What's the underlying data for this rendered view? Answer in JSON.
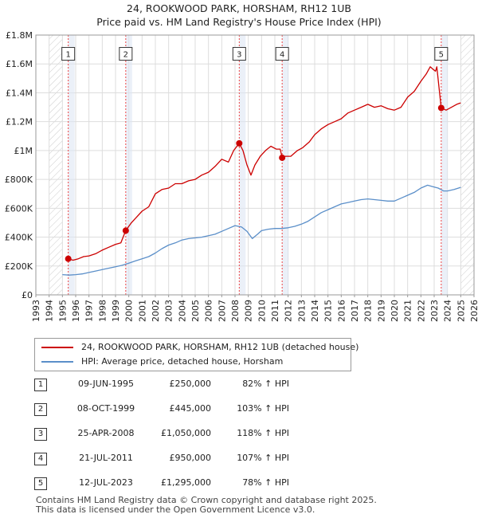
{
  "title_line1": "24, ROOKWOOD PARK, HORSHAM, RH12 1UB",
  "title_line2": "Price paid vs. HM Land Registry's House Price Index (HPI)",
  "colors": {
    "property": "#cc0000",
    "hpi": "#5b8fc9",
    "marker_line": "#ee4444",
    "hatch": "#cccccc",
    "shade": "#dde6f3",
    "grid": "#dddddd"
  },
  "chart_data": {
    "type": "line",
    "xlim": [
      1993,
      2026
    ],
    "ylim": [
      0,
      1800000
    ],
    "x_ticks": [
      1993,
      1994,
      1995,
      1996,
      1997,
      1998,
      1999,
      2000,
      2001,
      2002,
      2003,
      2004,
      2005,
      2006,
      2007,
      2008,
      2009,
      2010,
      2011,
      2012,
      2013,
      2014,
      2015,
      2016,
      2017,
      2018,
      2019,
      2020,
      2021,
      2022,
      2023,
      2024,
      2025,
      2026
    ],
    "y_ticks": [
      {
        "value": 0,
        "label": "£0"
      },
      {
        "value": 200000,
        "label": "£200K"
      },
      {
        "value": 400000,
        "label": "£400K"
      },
      {
        "value": 600000,
        "label": "£600K"
      },
      {
        "value": 800000,
        "label": "£800K"
      },
      {
        "value": 1000000,
        "label": "£1M"
      },
      {
        "value": 1200000,
        "label": "£1.2M"
      },
      {
        "value": 1400000,
        "label": "£1.4M"
      },
      {
        "value": 1600000,
        "label": "£1.6M"
      },
      {
        "value": 1800000,
        "label": "£1.8M"
      }
    ],
    "grid": true,
    "hatched_before": 1995.0,
    "hatched_after": 2025.0,
    "series": [
      {
        "name": "24, ROOKWOOD PARK, HORSHAM, RH12 1UB (detached house)",
        "color": "#cc0000",
        "x": [
          1995.44,
          1995.8,
          1996.2,
          1996.6,
          1997.0,
          1997.5,
          1998.0,
          1998.5,
          1999.0,
          1999.4,
          1999.77,
          2000.2,
          2000.6,
          2001.0,
          2001.5,
          2002.0,
          2002.5,
          2003.0,
          2003.5,
          2004.0,
          2004.5,
          2005.0,
          2005.5,
          2006.0,
          2006.5,
          2007.0,
          2007.5,
          2007.9,
          2008.32,
          2008.6,
          2008.9,
          2009.2,
          2009.5,
          2009.9,
          2010.3,
          2010.7,
          2011.1,
          2011.4,
          2011.55,
          2011.8,
          2012.2,
          2012.7,
          2013.1,
          2013.6,
          2014.0,
          2014.5,
          2015.0,
          2015.5,
          2016.0,
          2016.5,
          2017.0,
          2017.5,
          2018.0,
          2018.5,
          2019.0,
          2019.5,
          2020.0,
          2020.5,
          2021.0,
          2021.5,
          2022.0,
          2022.4,
          2022.7,
          2022.95,
          2023.1,
          2023.2,
          2023.53,
          2023.9,
          2024.3,
          2024.7,
          2025.0
        ],
        "y": [
          250000,
          240000,
          250000,
          265000,
          270000,
          285000,
          310000,
          330000,
          350000,
          360000,
          445000,
          500000,
          540000,
          580000,
          610000,
          700000,
          730000,
          740000,
          770000,
          770000,
          790000,
          800000,
          830000,
          850000,
          890000,
          940000,
          920000,
          1000000,
          1050000,
          1000000,
          900000,
          830000,
          900000,
          960000,
          1000000,
          1030000,
          1010000,
          1010000,
          950000,
          960000,
          960000,
          1000000,
          1020000,
          1060000,
          1110000,
          1150000,
          1180000,
          1200000,
          1220000,
          1260000,
          1280000,
          1300000,
          1320000,
          1300000,
          1310000,
          1290000,
          1280000,
          1300000,
          1370000,
          1410000,
          1480000,
          1530000,
          1580000,
          1560000,
          1550000,
          1580000,
          1295000,
          1280000,
          1300000,
          1320000,
          1330000
        ]
      },
      {
        "name": "HPI: Average price, detached house, Horsham",
        "color": "#5b8fc9",
        "x": [
          1995.0,
          1995.5,
          1996.0,
          1996.5,
          1997.0,
          1997.5,
          1998.0,
          1998.5,
          1999.0,
          1999.5,
          2000.0,
          2000.5,
          2001.0,
          2001.5,
          2002.0,
          2002.5,
          2003.0,
          2003.5,
          2004.0,
          2004.5,
          2005.0,
          2005.5,
          2006.0,
          2006.5,
          2007.0,
          2007.5,
          2008.0,
          2008.5,
          2008.9,
          2009.3,
          2009.7,
          2010.0,
          2010.5,
          2011.0,
          2011.5,
          2012.0,
          2012.5,
          2013.0,
          2013.5,
          2014.0,
          2014.5,
          2015.0,
          2015.5,
          2016.0,
          2016.5,
          2017.0,
          2017.5,
          2018.0,
          2018.5,
          2019.0,
          2019.5,
          2020.0,
          2020.5,
          2021.0,
          2021.5,
          2022.0,
          2022.5,
          2022.9,
          2023.3,
          2023.7,
          2024.0,
          2024.5,
          2025.0
        ],
        "y": [
          140000,
          137000,
          140000,
          145000,
          155000,
          165000,
          175000,
          185000,
          195000,
          205000,
          220000,
          235000,
          250000,
          265000,
          290000,
          320000,
          345000,
          360000,
          380000,
          390000,
          395000,
          400000,
          410000,
          420000,
          440000,
          460000,
          480000,
          470000,
          440000,
          390000,
          420000,
          445000,
          455000,
          460000,
          460000,
          465000,
          475000,
          490000,
          510000,
          540000,
          570000,
          590000,
          610000,
          630000,
          640000,
          650000,
          660000,
          665000,
          660000,
          655000,
          650000,
          650000,
          670000,
          690000,
          710000,
          740000,
          760000,
          750000,
          740000,
          720000,
          720000,
          730000,
          745000
        ]
      }
    ],
    "sales": [
      {
        "id": "1",
        "x": 1995.44,
        "y": 250000,
        "date": "09-JUN-1995",
        "price": "£250,000",
        "hpi": "82% ↑ HPI"
      },
      {
        "id": "2",
        "x": 1999.77,
        "y": 445000,
        "date": "08-OCT-1999",
        "price": "£445,000",
        "hpi": "103% ↑ HPI"
      },
      {
        "id": "3",
        "x": 2008.32,
        "y": 1050000,
        "date": "25-APR-2008",
        "price": "£1,050,000",
        "hpi": "118% ↑ HPI"
      },
      {
        "id": "4",
        "x": 2011.55,
        "y": 950000,
        "date": "21-JUL-2011",
        "price": "£950,000",
        "hpi": "107% ↑ HPI"
      },
      {
        "id": "5",
        "x": 2023.53,
        "y": 1295000,
        "date": "12-JUL-2023",
        "price": "£1,295,000",
        "hpi": "78% ↑ HPI"
      }
    ],
    "marker_label_y": 1670000
  },
  "legend": {
    "property_label": "24, ROOKWOOD PARK, HORSHAM, RH12 1UB (detached house)",
    "hpi_label": "HPI: Average price, detached house, Horsham"
  },
  "footer": {
    "line1": "Contains HM Land Registry data © Crown copyright and database right 2025.",
    "line2": "This data is licensed under the Open Government Licence v3.0."
  }
}
